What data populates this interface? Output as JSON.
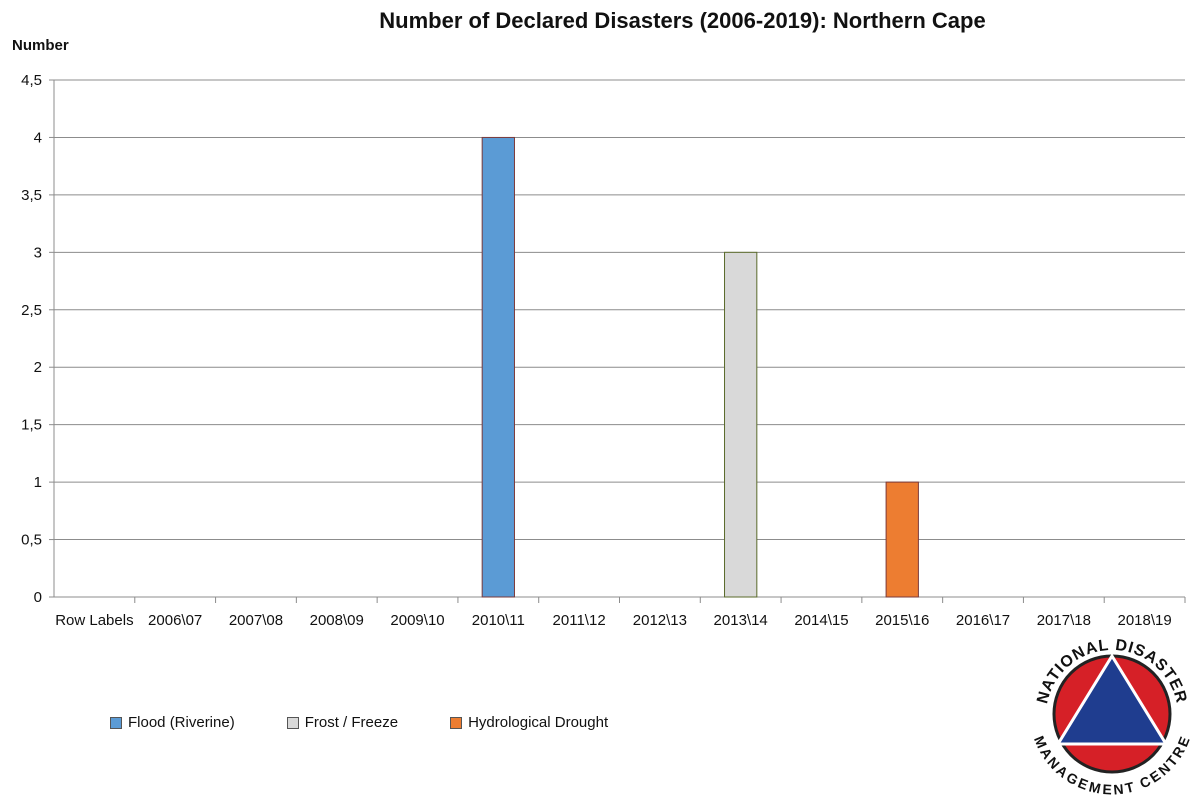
{
  "chart_data": {
    "type": "bar",
    "title": "Number of Declared Disasters (2006-2019): Northern Cape",
    "ylabel": "Number",
    "xlabel": "",
    "ylim": [
      0,
      4.5
    ],
    "yticks": [
      "0",
      "0,5",
      "1",
      "1,5",
      "2",
      "2,5",
      "3",
      "3,5",
      "4",
      "4,5"
    ],
    "categories": [
      "Row Labels",
      "2006\\07",
      "2007\\08",
      "2008\\09",
      "2009\\10",
      "2010\\11",
      "2011\\12",
      "2012\\13",
      "2013\\14",
      "2014\\15",
      "2015\\16",
      "2016\\17",
      "2017\\18",
      "2018\\19"
    ],
    "series": [
      {
        "name": "Flood (Riverine)",
        "color": "#5b9bd5",
        "stroke": "#7b3a3a",
        "values": [
          null,
          null,
          null,
          null,
          null,
          4,
          null,
          null,
          null,
          null,
          null,
          null,
          null,
          null
        ]
      },
      {
        "name": "Frost / Freeze",
        "color": "#d9d9d9",
        "stroke": "#5a6a2a",
        "values": [
          null,
          null,
          null,
          null,
          null,
          null,
          null,
          null,
          3,
          null,
          null,
          null,
          null,
          null
        ]
      },
      {
        "name": "Hydrological Drought",
        "color": "#ed7d31",
        "stroke": "#7b3a3a",
        "values": [
          null,
          null,
          null,
          null,
          null,
          null,
          null,
          null,
          null,
          null,
          1,
          null,
          null,
          null
        ]
      }
    ],
    "grid": true,
    "legend_position": "bottom-left"
  },
  "logo": {
    "top_text": "NATIONAL DISASTER",
    "bottom_text": "MANAGEMENT CENTRE",
    "ring_color": "#d62027",
    "triangle_color": "#1f3d8f"
  }
}
